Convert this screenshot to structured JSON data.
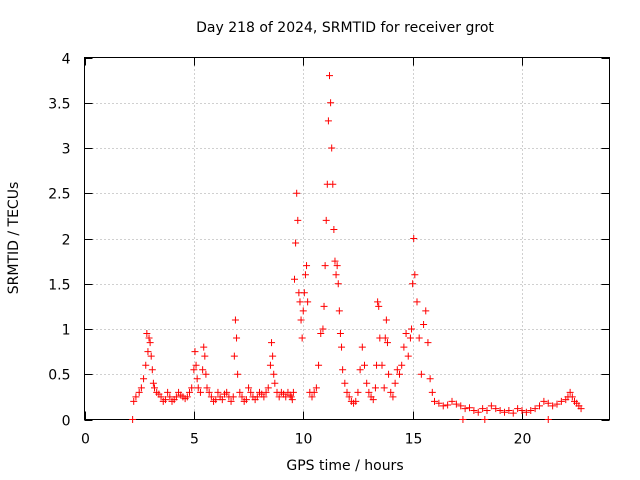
{
  "chart_data": {
    "type": "scatter",
    "title": "Day 218 of 2024, SRMTID for receiver grot",
    "xlabel": "GPS time / hours",
    "ylabel": "SRMTID / TECUs",
    "xlim": [
      0,
      24
    ],
    "ylim": [
      0,
      4
    ],
    "x_ticks": [
      0,
      5,
      10,
      15,
      20
    ],
    "x_tick_labels": [
      "0",
      "5",
      "10",
      "15",
      "20"
    ],
    "y_ticks": [
      0,
      0.5,
      1,
      1.5,
      2,
      2.5,
      3,
      3.5,
      4
    ],
    "y_tick_labels": [
      "0",
      "0.5",
      "1",
      "1.5",
      "2",
      "2.5",
      "3",
      "3.5",
      "4"
    ],
    "grid": true,
    "marker": "+",
    "series": [
      {
        "name": "SRMTID",
        "color": "#ff0000",
        "x": [
          2.25,
          2.35,
          2.5,
          2.6,
          2.7,
          2.8,
          2.85,
          2.9,
          2.95,
          3.0,
          3.05,
          3.1,
          3.15,
          3.2,
          3.3,
          3.4,
          3.5,
          3.6,
          3.7,
          3.8,
          3.9,
          4.0,
          4.1,
          4.2,
          4.3,
          4.4,
          4.5,
          4.6,
          4.7,
          4.8,
          4.9,
          5.0,
          5.05,
          5.1,
          5.15,
          5.2,
          5.3,
          5.4,
          5.45,
          5.5,
          5.55,
          5.6,
          5.7,
          5.8,
          5.9,
          6.0,
          6.1,
          6.2,
          6.3,
          6.4,
          6.5,
          6.6,
          6.7,
          6.8,
          6.85,
          6.9,
          6.95,
          7.0,
          7.1,
          7.2,
          7.3,
          7.4,
          7.5,
          7.6,
          7.7,
          7.8,
          7.9,
          8.0,
          8.1,
          8.2,
          8.3,
          8.4,
          8.5,
          8.55,
          8.6,
          8.65,
          8.7,
          8.8,
          8.9,
          9.0,
          9.1,
          9.2,
          9.3,
          9.4,
          9.45,
          9.5,
          9.55,
          9.6,
          9.65,
          9.7,
          9.75,
          9.8,
          9.85,
          9.9,
          9.95,
          10.0,
          10.05,
          10.1,
          10.15,
          10.2,
          10.3,
          10.4,
          10.5,
          10.6,
          10.7,
          10.8,
          10.9,
          10.95,
          11.0,
          11.05,
          11.1,
          11.15,
          11.2,
          11.25,
          11.3,
          11.35,
          11.4,
          11.45,
          11.5,
          11.55,
          11.6,
          11.65,
          11.7,
          11.75,
          11.8,
          11.9,
          12.0,
          12.1,
          12.2,
          12.3,
          12.4,
          12.5,
          12.6,
          12.7,
          12.8,
          12.9,
          13.0,
          13.1,
          13.2,
          13.3,
          13.35,
          13.4,
          13.45,
          13.5,
          13.6,
          13.7,
          13.75,
          13.8,
          13.85,
          13.9,
          14.0,
          14.1,
          14.2,
          14.3,
          14.4,
          14.5,
          14.6,
          14.7,
          14.8,
          14.9,
          14.95,
          15.0,
          15.05,
          15.1,
          15.2,
          15.3,
          15.4,
          15.5,
          15.6,
          15.7,
          15.8,
          15.9,
          16.0,
          16.2,
          16.4,
          16.6,
          16.8,
          17.0,
          17.2,
          17.4,
          17.6,
          17.8,
          18.0,
          18.2,
          18.4,
          18.6,
          18.8,
          19.0,
          19.2,
          19.4,
          19.6,
          19.8,
          20.0,
          20.2,
          20.4,
          20.6,
          20.8,
          21.0,
          21.2,
          21.4,
          21.6,
          21.8,
          22.0,
          22.1,
          22.2,
          22.3,
          22.4,
          22.5,
          22.6,
          22.7,
          2.2,
          17.3,
          18.3,
          21.2
        ],
        "y": [
          0.2,
          0.25,
          0.3,
          0.35,
          0.45,
          0.6,
          0.95,
          0.75,
          0.9,
          0.85,
          0.7,
          0.55,
          0.4,
          0.35,
          0.3,
          0.28,
          0.25,
          0.2,
          0.22,
          0.3,
          0.25,
          0.2,
          0.22,
          0.25,
          0.3,
          0.27,
          0.25,
          0.23,
          0.25,
          0.3,
          0.35,
          0.55,
          0.75,
          0.6,
          0.45,
          0.35,
          0.3,
          0.55,
          0.8,
          0.7,
          0.5,
          0.35,
          0.3,
          0.25,
          0.2,
          0.22,
          0.3,
          0.25,
          0.22,
          0.28,
          0.3,
          0.25,
          0.2,
          0.25,
          0.7,
          1.1,
          0.9,
          0.5,
          0.3,
          0.25,
          0.2,
          0.22,
          0.35,
          0.3,
          0.25,
          0.22,
          0.25,
          0.3,
          0.28,
          0.25,
          0.3,
          0.35,
          0.6,
          0.85,
          0.7,
          0.5,
          0.4,
          0.3,
          0.25,
          0.3,
          0.28,
          0.25,
          0.3,
          0.27,
          0.25,
          0.22,
          0.3,
          1.55,
          1.95,
          2.5,
          2.2,
          1.4,
          1.3,
          1.1,
          0.9,
          1.2,
          1.4,
          1.6,
          1.7,
          1.3,
          0.3,
          0.25,
          0.3,
          0.35,
          0.6,
          0.95,
          1.0,
          1.25,
          1.7,
          2.2,
          2.6,
          3.3,
          3.8,
          3.5,
          3.0,
          2.6,
          2.1,
          1.75,
          1.6,
          1.7,
          1.5,
          1.2,
          0.95,
          0.8,
          0.55,
          0.4,
          0.3,
          0.25,
          0.2,
          0.18,
          0.2,
          0.3,
          0.55,
          0.8,
          0.6,
          0.4,
          0.3,
          0.25,
          0.22,
          0.35,
          0.6,
          1.3,
          1.25,
          0.9,
          0.6,
          0.35,
          0.9,
          1.1,
          0.85,
          0.5,
          0.3,
          0.25,
          0.4,
          0.55,
          0.5,
          0.6,
          0.8,
          0.95,
          0.7,
          0.9,
          1.0,
          1.5,
          2.0,
          1.6,
          1.3,
          0.9,
          0.5,
          1.05,
          1.2,
          0.85,
          0.45,
          0.3,
          0.2,
          0.18,
          0.15,
          0.16,
          0.2,
          0.17,
          0.15,
          0.12,
          0.13,
          0.1,
          0.08,
          0.12,
          0.1,
          0.15,
          0.12,
          0.1,
          0.08,
          0.1,
          0.07,
          0.12,
          0.1,
          0.08,
          0.1,
          0.12,
          0.15,
          0.2,
          0.18,
          0.15,
          0.17,
          0.2,
          0.22,
          0.25,
          0.3,
          0.25,
          0.2,
          0.18,
          0.15,
          0.12,
          0.0,
          0.0,
          0.0,
          0.0
        ]
      }
    ]
  }
}
